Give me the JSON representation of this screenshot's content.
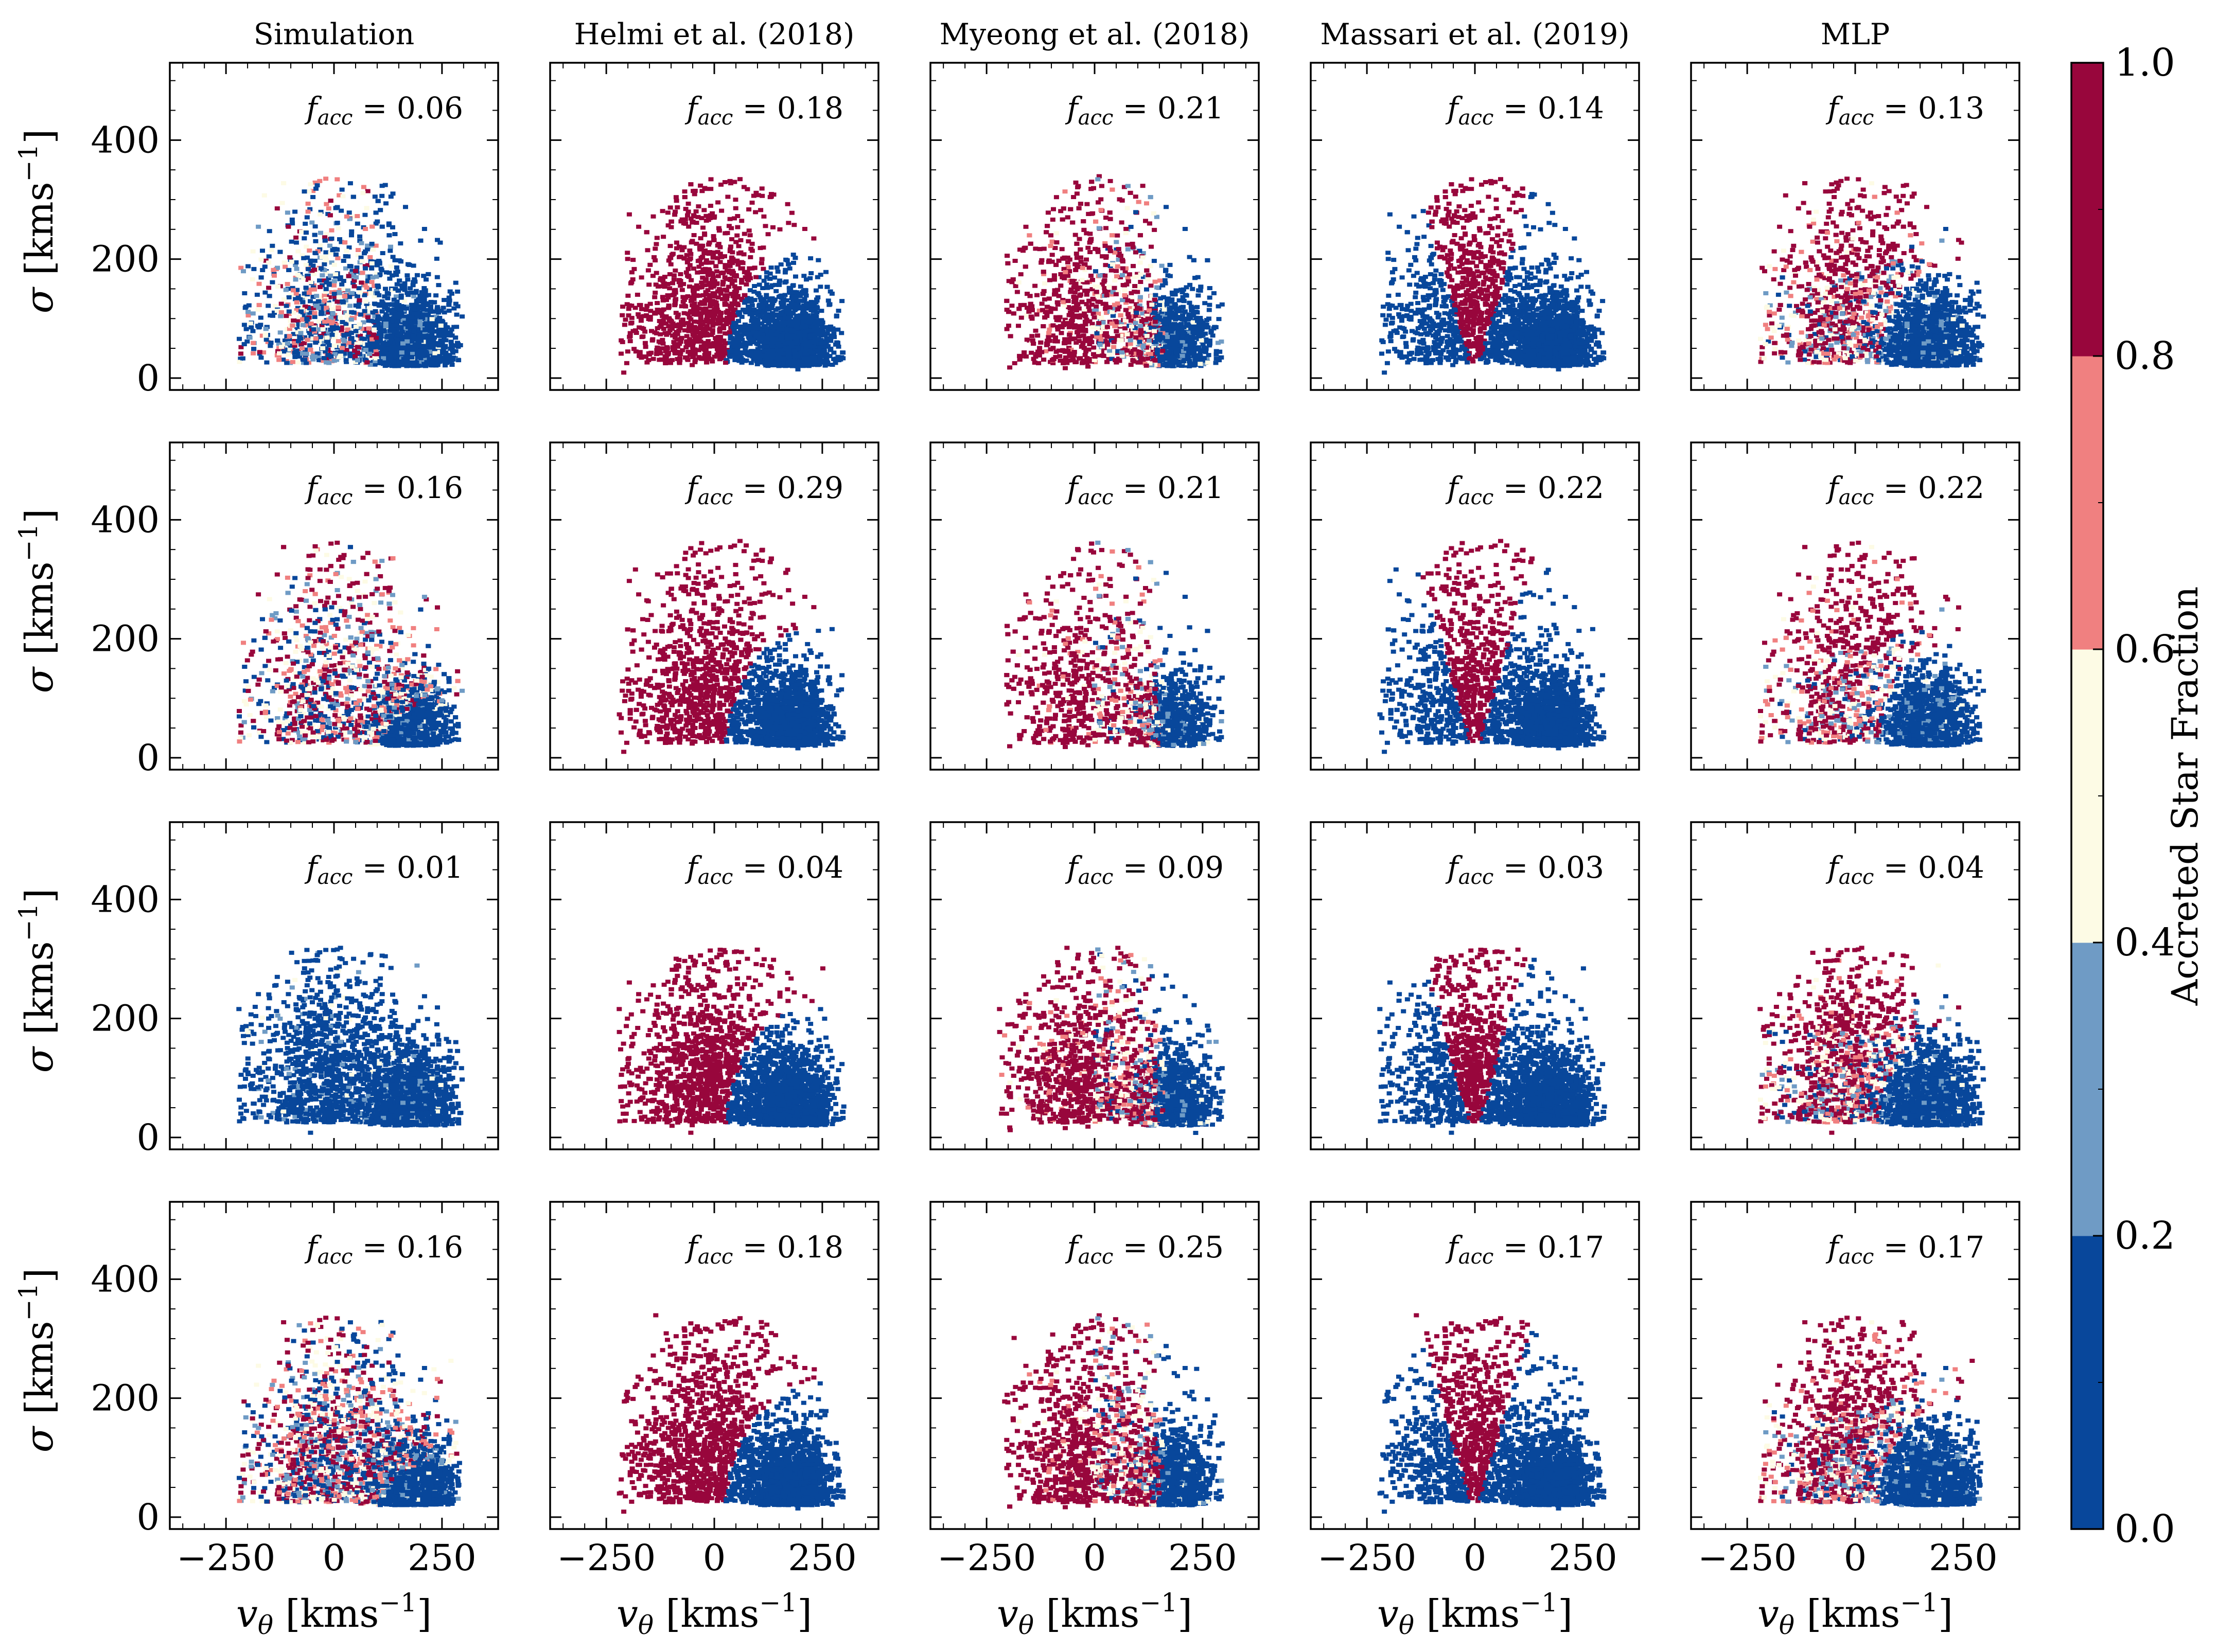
{
  "figure": {
    "columns": [
      {
        "title": "Simulation",
        "kind": "sim"
      },
      {
        "title": "Helmi et al. (2018)",
        "kind": "helmi"
      },
      {
        "title": "Myeong et al. (2018)",
        "kind": "myeong"
      },
      {
        "title": "Massari et al. (2019)",
        "kind": "massari"
      },
      {
        "title": "MLP",
        "kind": "mlp"
      }
    ],
    "rows": [
      {
        "f_acc": [
          "0.06",
          "0.18",
          "0.21",
          "0.14",
          "0.13"
        ]
      },
      {
        "f_acc": [
          "0.16",
          "0.29",
          "0.21",
          "0.22",
          "0.22"
        ]
      },
      {
        "f_acc": [
          "0.01",
          "0.04",
          "0.09",
          "0.03",
          "0.04"
        ]
      },
      {
        "f_acc": [
          "0.16",
          "0.18",
          "0.25",
          "0.17",
          "0.17"
        ]
      }
    ],
    "f_acc_symbol": "f",
    "f_acc_subscript": "acc",
    "ylabel_symbol": "σ",
    "ylabel_units": "[kms",
    "xlabel_symbol": "v",
    "xlabel_sub": "θ",
    "units_superscript": "−1",
    "units_close": "]",
    "colorbar": {
      "label": "Accreted Star Fraction",
      "ticks": [
        "0.0",
        "0.2",
        "0.4",
        "0.6",
        "0.8",
        "1.0"
      ],
      "bin_colors": [
        "#08479b",
        "#6f9bc5",
        "#fdfbe5",
        "#f08080",
        "#98063c"
      ]
    },
    "colors": {
      "blue": "#08479b",
      "red": "#98063c",
      "lightblue": "#6f9bc5",
      "pink": "#f08080",
      "cream": "#fdfbe5"
    }
  },
  "chart_data": {
    "type": "scatter",
    "description_axes": "grid of 4 x 5 panels of v_theta vs sigma colored by accreted star fraction",
    "xlim": [
      -380,
      380
    ],
    "ylim": [
      -20,
      530
    ],
    "xticks": [
      -250,
      0,
      250
    ],
    "xtick_labels": [
      "−250",
      "0",
      "250"
    ],
    "yticks": [
      0,
      200,
      400
    ],
    "ytick_labels": [
      "0",
      "200",
      "400"
    ],
    "row_sigma_max": [
      340,
      370,
      320,
      340
    ],
    "helmi_boundary_center_vtheta": 250,
    "helmi_boundary_radius": 225,
    "myeong_cut_vtheta": 145,
    "massari_wedge_slope": 2.5,
    "colorbar_range": [
      0.0,
      1.0
    ]
  }
}
